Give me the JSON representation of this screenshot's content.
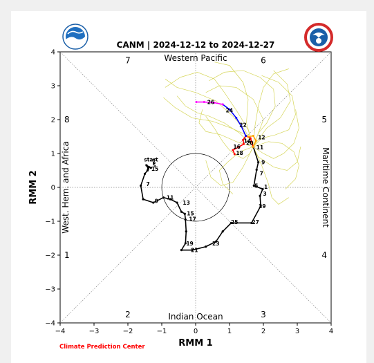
{
  "chart_data": {
    "type": "line",
    "title": "CANM | 2024-12-12 to 2024-12-27",
    "xlabel": "RMM 1",
    "ylabel": "RMM 2",
    "xlim": [
      -4,
      4
    ],
    "ylim": [
      -4,
      4
    ],
    "xticks": [
      "−4",
      "−3",
      "−2",
      "−1",
      "0",
      "1",
      "2",
      "3",
      "4"
    ],
    "yticks": [
      "−4",
      "−3",
      "−2",
      "−1",
      "0",
      "1",
      "2",
      "3",
      "4"
    ],
    "phase_numbers": [
      {
        "label": "7",
        "x": -2.0,
        "y": 3.75
      },
      {
        "label": "6",
        "x": 2.0,
        "y": 3.75
      },
      {
        "label": "8",
        "x": -3.8,
        "y": 2.0
      },
      {
        "label": "5",
        "x": 3.8,
        "y": 2.0
      },
      {
        "label": "1",
        "x": -3.8,
        "y": -2.0
      },
      {
        "label": "4",
        "x": 3.8,
        "y": -2.0
      },
      {
        "label": "2",
        "x": -2.0,
        "y": -3.75
      },
      {
        "label": "3",
        "x": 2.0,
        "y": -3.75
      }
    ],
    "region_labels": {
      "top": "Western Pacific",
      "bottom": "Indian Ocean",
      "left": "West. Hem. and Africa",
      "right": "Maritime Continent"
    },
    "observed": {
      "start_label": "start",
      "points": [
        [
          -1.32,
          0.58
        ],
        [
          -1.45,
          0.65
        ],
        [
          -1.4,
          0.55
        ],
        [
          -1.38,
          0.6
        ],
        [
          -1.42,
          0.5
        ],
        [
          -1.5,
          0.4
        ],
        [
          -1.62,
          0.05
        ],
        [
          -1.55,
          -0.35
        ],
        [
          -1.25,
          -0.45
        ],
        [
          -0.95,
          -0.3
        ],
        [
          -0.75,
          -0.35
        ],
        [
          -0.55,
          -0.45
        ],
        [
          -0.42,
          -0.72
        ],
        [
          -0.32,
          -0.78
        ],
        [
          -0.3,
          -0.95
        ],
        [
          -0.28,
          -1.3
        ],
        [
          -0.3,
          -1.65
        ],
        [
          -0.42,
          -1.85
        ],
        [
          -0.1,
          -1.85
        ],
        [
          0.3,
          -1.75
        ],
        [
          0.6,
          -1.6
        ],
        [
          0.8,
          -1.3
        ],
        [
          1.05,
          -1.05
        ],
        [
          1.65,
          -1.05
        ],
        [
          1.92,
          -0.55
        ],
        [
          1.9,
          -0.25
        ],
        [
          1.98,
          -0.05
        ],
        [
          1.72,
          0.05
        ],
        [
          1.8,
          0.52
        ],
        [
          1.85,
          0.74
        ],
        [
          1.7,
          1.2
        ]
      ],
      "labels": [
        {
          "text": "1",
          "x": 1.98,
          "y": 0.02
        },
        {
          "text": "3",
          "x": 1.95,
          "y": -0.18
        },
        {
          "text": "5",
          "x": 1.7,
          "y": 0.05
        },
        {
          "text": "7",
          "x": 1.85,
          "y": 0.42
        },
        {
          "text": "9",
          "x": 1.9,
          "y": 0.74
        },
        {
          "text": "11",
          "x": 1.75,
          "y": 1.18
        },
        {
          "text": "2",
          "x": -1.32,
          "y": 0.78
        },
        {
          "text": "5",
          "x": -1.32,
          "y": 0.65
        },
        {
          "text": "15",
          "x": -1.35,
          "y": 0.55
        },
        {
          "text": "7",
          "x": -1.5,
          "y": 0.1
        },
        {
          "text": "9",
          "x": -1.25,
          "y": -0.4
        },
        {
          "text": "11",
          "x": -0.9,
          "y": -0.3
        },
        {
          "text": "13",
          "x": -0.42,
          "y": -0.45
        },
        {
          "text": "15",
          "x": -0.3,
          "y": -0.77
        },
        {
          "text": "17",
          "x": -0.24,
          "y": -0.93
        },
        {
          "text": "19",
          "x": -0.32,
          "y": -1.65
        },
        {
          "text": "21",
          "x": -0.18,
          "y": -1.85
        },
        {
          "text": "23",
          "x": 0.45,
          "y": -1.65
        },
        {
          "text": "25",
          "x": 1.0,
          "y": -1.02
        },
        {
          "text": "27",
          "x": 1.62,
          "y": -1.02
        },
        {
          "text": "29",
          "x": 1.82,
          "y": -0.55
        }
      ]
    },
    "forecast_segments": [
      {
        "color": "#ff0000",
        "points": [
          [
            1.7,
            1.2
          ],
          [
            1.62,
            1.45
          ],
          [
            1.48,
            1.52
          ],
          [
            1.4,
            1.4
          ],
          [
            1.42,
            1.28
          ],
          [
            1.25,
            1.18
          ],
          [
            1.1,
            1.1
          ],
          [
            1.15,
            0.98
          ]
        ],
        "labels": [
          {
            "text": "12",
            "x": 1.8,
            "y": 1.48
          },
          {
            "text": "14",
            "x": 1.38,
            "y": 1.38
          },
          {
            "text": "16",
            "x": 1.07,
            "y": 1.2
          },
          {
            "text": "18",
            "x": 1.15,
            "y": 1.02
          }
        ]
      },
      {
        "color": "#ffa500",
        "points": [
          [
            1.7,
            1.2
          ],
          [
            1.78,
            1.38
          ],
          [
            1.7,
            1.52
          ],
          [
            1.55,
            1.5
          ]
        ],
        "labels": [
          {
            "text": "20",
            "x": 1.45,
            "y": 1.32
          }
        ]
      },
      {
        "color": "#0000ff",
        "points": [
          [
            1.48,
            1.52
          ],
          [
            1.35,
            1.8
          ],
          [
            1.2,
            2.05
          ],
          [
            1.0,
            2.3
          ],
          [
            0.8,
            2.45
          ]
        ],
        "labels": [
          {
            "text": "22",
            "x": 1.25,
            "y": 1.85
          },
          {
            "text": "24",
            "x": 0.85,
            "y": 2.28
          }
        ]
      },
      {
        "color": "#ff00ff",
        "points": [
          [
            0.8,
            2.45
          ],
          [
            0.55,
            2.5
          ],
          [
            0.25,
            2.52
          ],
          [
            0.02,
            2.52
          ]
        ],
        "labels": [
          {
            "text": "26",
            "x": 0.3,
            "y": 2.52
          }
        ]
      }
    ],
    "ensemble_members": [
      [
        [
          1.7,
          1.2
        ],
        [
          1.85,
          1.6
        ],
        [
          2.1,
          1.9
        ],
        [
          2.35,
          2.4
        ],
        [
          2.3,
          2.9
        ],
        [
          1.9,
          3.25
        ],
        [
          1.4,
          3.45
        ],
        [
          0.85,
          3.4
        ],
        [
          0.4,
          3.15
        ]
      ],
      [
        [
          1.7,
          1.2
        ],
        [
          1.55,
          1.7
        ],
        [
          1.25,
          2.2
        ],
        [
          0.85,
          2.8
        ],
        [
          0.55,
          3.2
        ],
        [
          0.05,
          3.4
        ],
        [
          -0.45,
          3.25
        ],
        [
          -0.9,
          2.95
        ]
      ],
      [
        [
          1.7,
          1.2
        ],
        [
          1.95,
          1.45
        ],
        [
          2.35,
          1.55
        ],
        [
          2.75,
          1.7
        ],
        [
          2.95,
          2.15
        ],
        [
          2.85,
          2.7
        ],
        [
          2.45,
          3.1
        ],
        [
          1.95,
          3.3
        ]
      ],
      [
        [
          1.7,
          1.2
        ],
        [
          1.6,
          1.0
        ],
        [
          1.4,
          0.85
        ],
        [
          1.2,
          0.95
        ],
        [
          1.0,
          1.1
        ],
        [
          0.8,
          1.35
        ],
        [
          0.55,
          1.75
        ],
        [
          0.3,
          2.1
        ]
      ],
      [
        [
          1.7,
          1.2
        ],
        [
          2.0,
          1.0
        ],
        [
          2.3,
          0.85
        ],
        [
          2.6,
          1.0
        ],
        [
          2.9,
          1.3
        ],
        [
          3.05,
          1.75
        ],
        [
          2.95,
          2.3
        ]
      ],
      [
        [
          1.7,
          1.2
        ],
        [
          1.45,
          1.7
        ],
        [
          1.1,
          2.1
        ],
        [
          0.6,
          2.55
        ],
        [
          0.0,
          2.8
        ],
        [
          -0.55,
          2.95
        ],
        [
          -0.9,
          3.2
        ]
      ],
      [
        [
          1.7,
          1.2
        ],
        [
          1.3,
          1.6
        ],
        [
          0.85,
          1.9
        ],
        [
          0.4,
          2.1
        ],
        [
          0.05,
          2.2
        ],
        [
          -0.3,
          2.4
        ],
        [
          -0.55,
          2.7
        ]
      ],
      [
        [
          1.7,
          1.2
        ],
        [
          2.15,
          1.35
        ],
        [
          2.55,
          1.3
        ],
        [
          2.9,
          1.05
        ],
        [
          3.05,
          0.65
        ],
        [
          2.95,
          0.25
        ],
        [
          2.65,
          -0.05
        ]
      ],
      [
        [
          1.7,
          1.2
        ],
        [
          1.75,
          1.8
        ],
        [
          1.85,
          2.4
        ],
        [
          2.0,
          2.95
        ],
        [
          2.3,
          3.35
        ],
        [
          2.75,
          3.5
        ]
      ],
      [
        [
          1.7,
          1.2
        ],
        [
          1.4,
          0.6
        ],
        [
          1.1,
          0.15
        ],
        [
          0.75,
          0.05
        ],
        [
          0.45,
          0.3
        ],
        [
          0.3,
          0.8
        ]
      ],
      [
        [
          1.7,
          1.2
        ],
        [
          1.95,
          0.65
        ],
        [
          2.15,
          0.1
        ],
        [
          2.25,
          -0.3
        ],
        [
          2.45,
          -0.5
        ],
        [
          2.75,
          -0.3
        ]
      ],
      [
        [
          1.7,
          1.2
        ],
        [
          1.2,
          1.35
        ],
        [
          0.75,
          1.55
        ],
        [
          0.3,
          1.65
        ],
        [
          0.1,
          1.9
        ],
        [
          0.2,
          2.3
        ]
      ],
      [
        [
          1.7,
          1.2
        ],
        [
          2.1,
          1.75
        ],
        [
          2.5,
          2.05
        ],
        [
          2.8,
          2.55
        ],
        [
          2.7,
          3.05
        ],
        [
          2.3,
          3.45
        ]
      ],
      [
        [
          1.7,
          1.2
        ],
        [
          1.5,
          1.9
        ],
        [
          1.55,
          2.6
        ],
        [
          1.4,
          3.1
        ],
        [
          1.0,
          3.6
        ],
        [
          0.55,
          3.7
        ]
      ],
      [
        [
          1.7,
          1.2
        ],
        [
          1.85,
          0.9
        ],
        [
          2.3,
          0.6
        ],
        [
          2.7,
          0.5
        ],
        [
          3.0,
          0.75
        ],
        [
          3.1,
          1.2
        ]
      ],
      [
        [
          1.7,
          1.2
        ],
        [
          1.3,
          1.05
        ],
        [
          0.95,
          0.75
        ],
        [
          0.7,
          0.5
        ],
        [
          0.8,
          0.1
        ],
        [
          1.1,
          -0.2
        ]
      ],
      [
        [
          1.7,
          1.2
        ],
        [
          1.6,
          1.5
        ],
        [
          1.05,
          1.75
        ],
        [
          0.5,
          1.95
        ],
        [
          -0.1,
          2.05
        ],
        [
          -0.6,
          2.35
        ],
        [
          -0.95,
          2.65
        ]
      ],
      [
        [
          1.7,
          1.2
        ],
        [
          2.0,
          2.0
        ],
        [
          1.7,
          2.6
        ],
        [
          1.2,
          2.95
        ],
        [
          0.7,
          3.0
        ],
        [
          0.3,
          2.8
        ]
      ]
    ]
  },
  "footer": {
    "credit": "Climate Prediction Center",
    "credit_color": "#ff0000"
  },
  "colors": {
    "observed": "#000000",
    "ensemble": "#d6d65a",
    "grid": "#888888"
  },
  "logos": {
    "left": "noaa-logo",
    "right": "nws-logo"
  }
}
